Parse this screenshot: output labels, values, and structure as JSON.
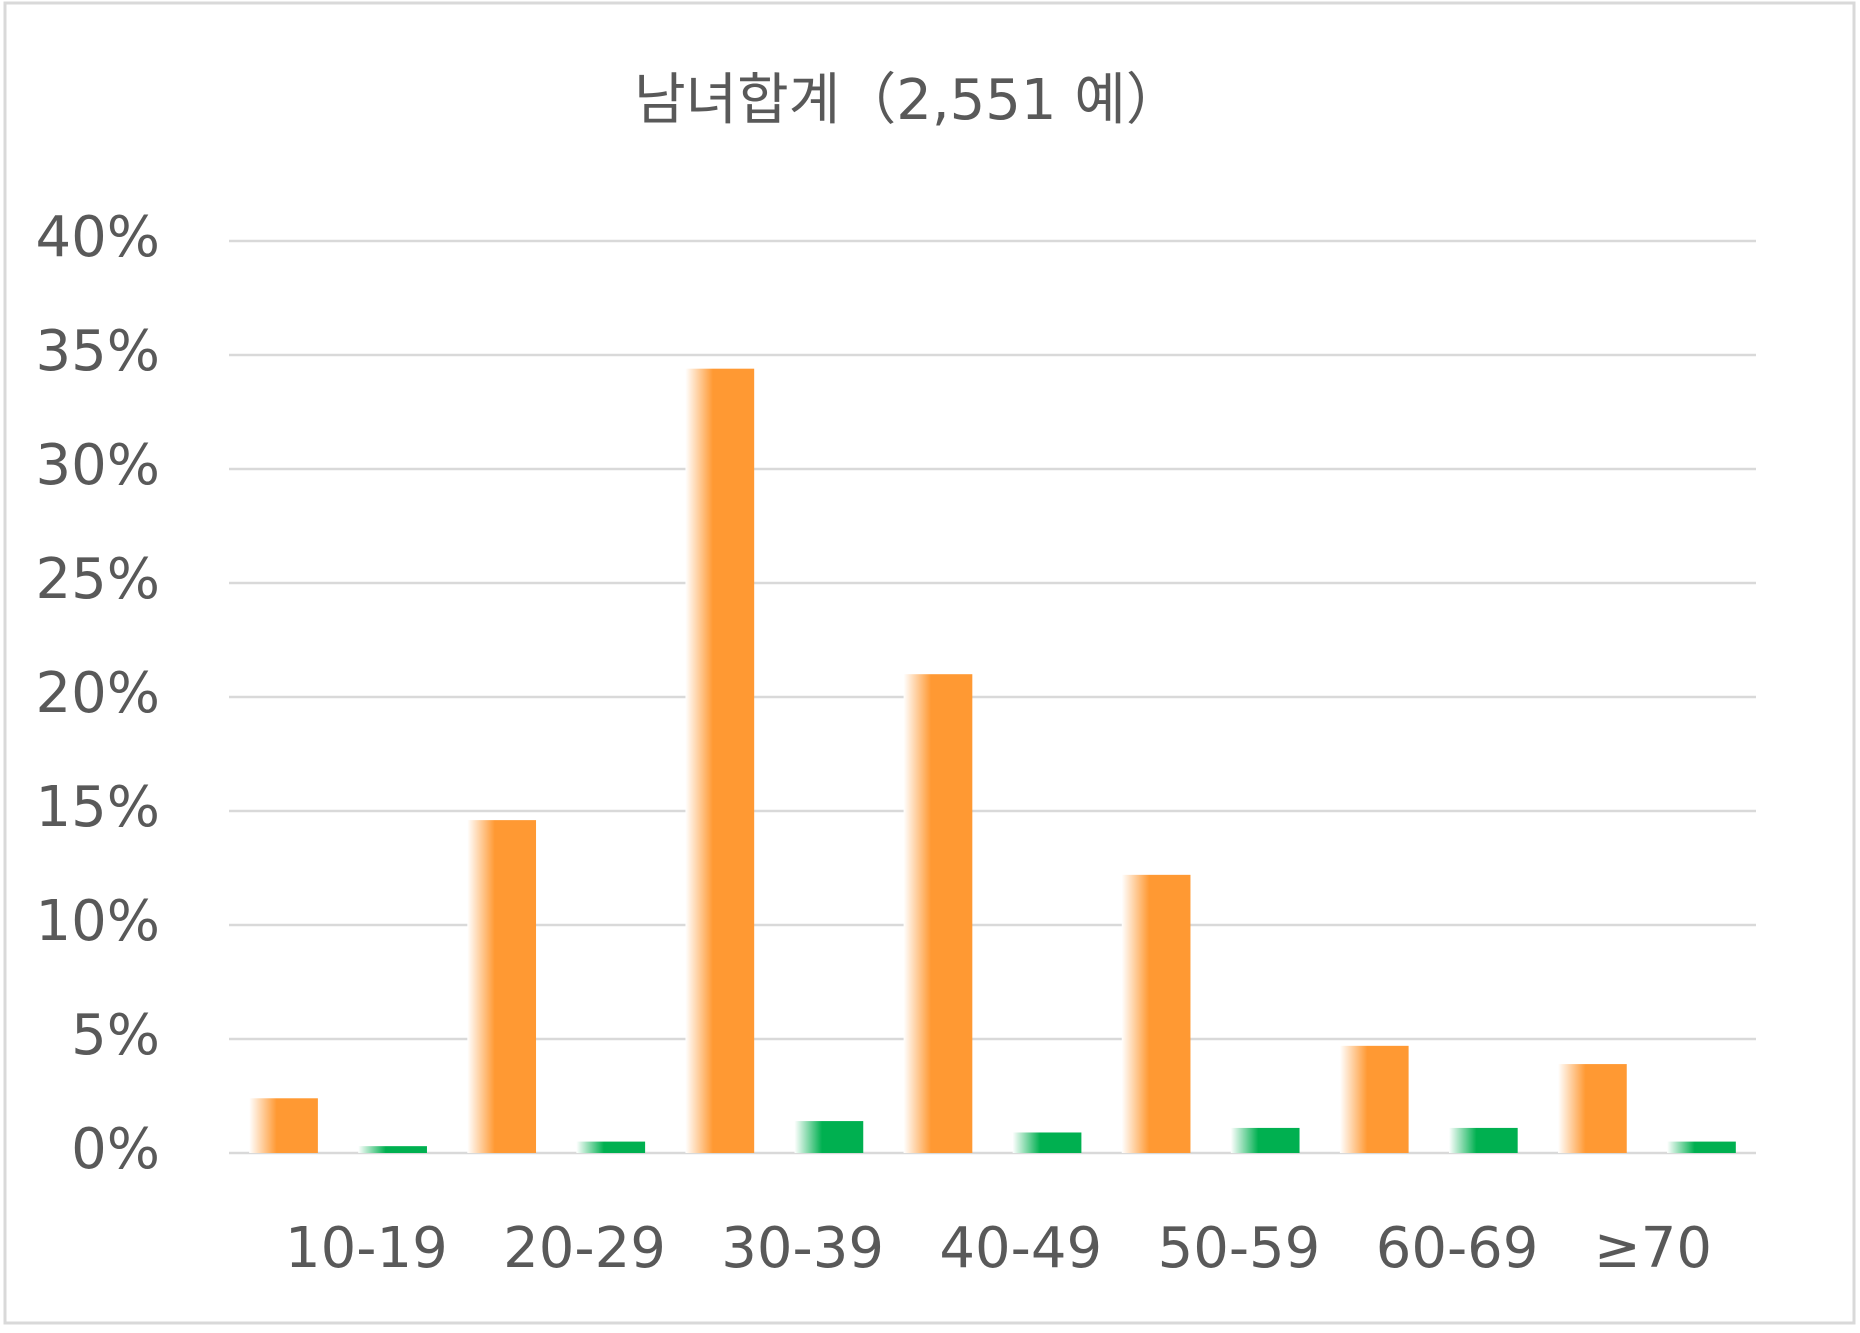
{
  "chart_data": {
    "type": "bar",
    "title": "남녀합계（2,551 예）",
    "categories": [
      "10-19",
      "20-29",
      "30-39",
      "40-49",
      "50-59",
      "60-69",
      "≥70"
    ],
    "series": [
      {
        "color": "#ff9933",
        "values": [
          2.4,
          14.6,
          34.4,
          21.0,
          12.2,
          4.7,
          3.9
        ]
      },
      {
        "color": "#00b050",
        "values": [
          0.3,
          0.5,
          1.4,
          0.9,
          1.1,
          1.1,
          0.5
        ]
      }
    ],
    "ylim": [
      0,
      40
    ],
    "yticks": [
      {
        "value": 0,
        "label": "0%"
      },
      {
        "value": 5,
        "label": "5%"
      },
      {
        "value": 10,
        "label": "10%"
      },
      {
        "value": 15,
        "label": "15%"
      },
      {
        "value": 20,
        "label": "20%"
      },
      {
        "value": 25,
        "label": "25%"
      },
      {
        "value": 30,
        "label": "30%"
      },
      {
        "value": 35,
        "label": "35%"
      },
      {
        "value": 40,
        "label": "40%"
      }
    ],
    "grid": true
  }
}
